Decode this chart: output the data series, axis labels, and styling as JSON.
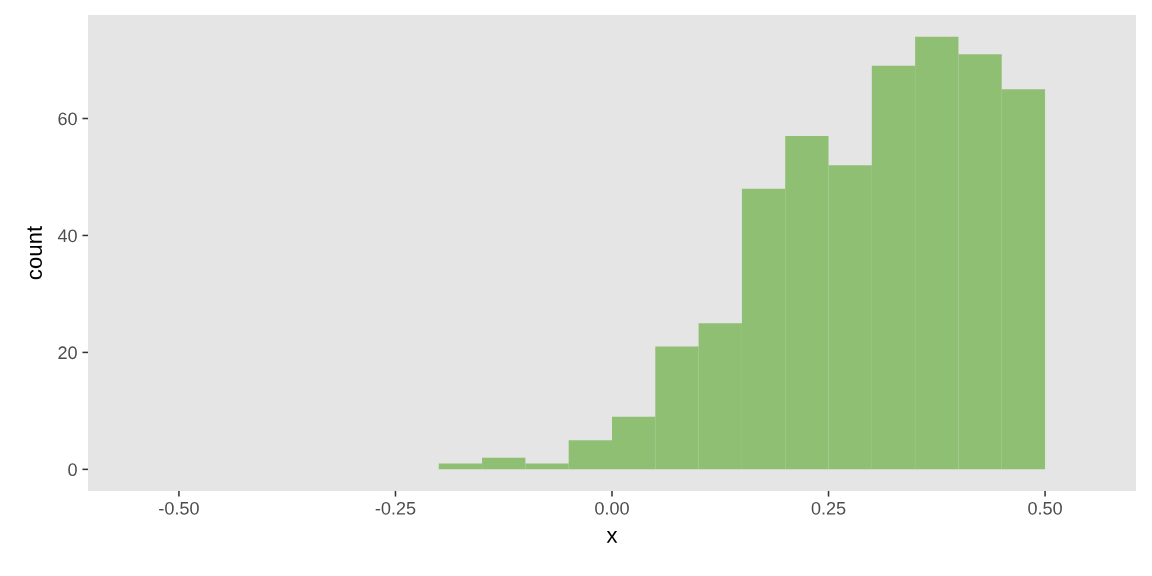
{
  "chart_data": {
    "type": "histogram",
    "xlabel": "x",
    "ylabel": "count",
    "color": "#8fbf72",
    "bins": [
      -0.2,
      -0.15,
      -0.1,
      -0.05,
      0.0,
      0.05,
      0.1,
      0.15,
      0.2,
      0.25,
      0.3,
      0.35,
      0.4,
      0.45,
      0.5
    ],
    "values": [
      1,
      2,
      1,
      5,
      9,
      21,
      25,
      48,
      57,
      52,
      69,
      74,
      71,
      65
    ],
    "xlim": [
      -0.605,
      0.605
    ],
    "ylim": [
      -3.7,
      77.7
    ],
    "xticks": [
      {
        "value": -0.5,
        "label": "-0.50"
      },
      {
        "value": -0.25,
        "label": "-0.25"
      },
      {
        "value": 0,
        "label": "0.00"
      },
      {
        "value": 0.25,
        "label": "0.25"
      },
      {
        "value": 0.5,
        "label": "0.50"
      }
    ],
    "yticks": [
      0,
      20,
      40,
      60
    ],
    "grid": false
  }
}
